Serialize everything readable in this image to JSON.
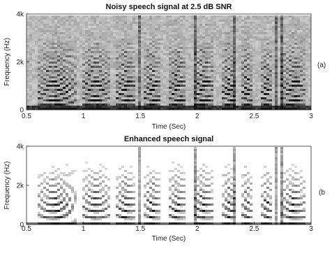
{
  "chart_data": [
    {
      "type": "heatmap",
      "title": "Noisy speech signal at 2.5 dB SNR",
      "xlabel": "Time (Sec)",
      "ylabel": "Frequency (Hz)",
      "xlim": [
        0.5,
        3
      ],
      "ylim": [
        0,
        4000
      ],
      "xticks": [
        0.5,
        1,
        1.5,
        2,
        2.5,
        3
      ],
      "xtick_labels": [
        "0.5",
        "1",
        "1.5",
        "2",
        "2.5",
        "3"
      ],
      "yticks": [
        0,
        2000,
        4000
      ],
      "ytick_labels": [
        "0",
        "2k",
        "4k"
      ],
      "panel_label": "(a)",
      "colormap": "grayscale, dark = high energy",
      "speech_segments_sec": [
        [
          0.6,
          0.93
        ],
        [
          0.98,
          1.23
        ],
        [
          1.28,
          1.46
        ],
        [
          1.53,
          1.68
        ],
        [
          1.74,
          1.9
        ],
        [
          1.96,
          2.15
        ],
        [
          2.22,
          2.33
        ],
        [
          2.39,
          2.48
        ],
        [
          2.56,
          2.66
        ],
        [
          2.74,
          2.95
        ]
      ],
      "noise_level": 0.38
    },
    {
      "type": "heatmap",
      "title": "Enhanced speech signal",
      "xlabel": "Time (Sec)",
      "ylabel": "Frequency (Hz)",
      "xlim": [
        0.5,
        3
      ],
      "ylim": [
        0,
        4000
      ],
      "xticks": [
        0.5,
        1,
        1.5,
        2,
        2.5,
        3
      ],
      "xtick_labels": [
        "0.5",
        "1",
        "1.5",
        "2",
        "2.5",
        "3"
      ],
      "yticks": [
        0,
        2000,
        4000
      ],
      "ytick_labels": [
        "0",
        "2k",
        "4k"
      ],
      "panel_label": "(b",
      "colormap": "grayscale, dark = high energy",
      "speech_segments_sec": [
        [
          0.6,
          0.93
        ],
        [
          0.98,
          1.23
        ],
        [
          1.28,
          1.46
        ],
        [
          1.53,
          1.68
        ],
        [
          1.74,
          1.9
        ],
        [
          1.96,
          2.15
        ],
        [
          2.22,
          2.33
        ],
        [
          2.39,
          2.48
        ],
        [
          2.56,
          2.66
        ],
        [
          2.74,
          2.95
        ]
      ],
      "noise_level": 0.08
    }
  ]
}
